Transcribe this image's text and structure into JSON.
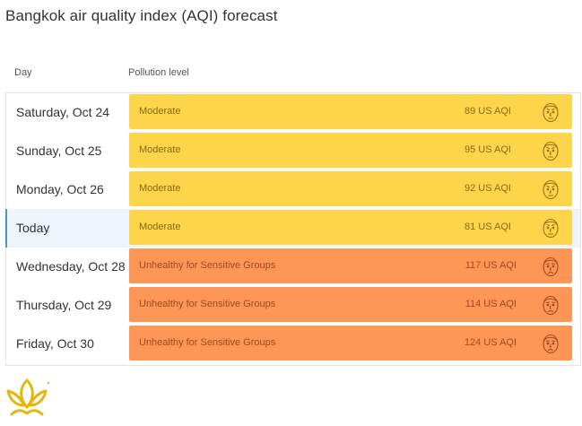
{
  "title": "Bangkok air quality index (AQI) forecast",
  "columns": {
    "day": "Day",
    "level": "Pollution level"
  },
  "colors": {
    "moderate": "#fcd54b",
    "unhealthy_sensitive": "#fe9656",
    "today_accent": "#4a97c9"
  },
  "rows": [
    {
      "day": "Saturday, Oct 24",
      "level": "Moderate",
      "aqi": "89 US AQI",
      "icon": "moderate-face-icon"
    },
    {
      "day": "Sunday, Oct 25",
      "level": "Moderate",
      "aqi": "95 US AQI",
      "icon": "moderate-face-icon"
    },
    {
      "day": "Monday, Oct 26",
      "level": "Moderate",
      "aqi": "92 US AQI",
      "icon": "moderate-face-icon"
    },
    {
      "day": "Today",
      "level": "Moderate",
      "aqi": "81 US AQI",
      "icon": "moderate-face-icon"
    },
    {
      "day": "Wednesday, Oct 28",
      "level": "Unhealthy for Sensitive Groups",
      "aqi": "117 US AQI",
      "icon": "unhealthy-face-icon"
    },
    {
      "day": "Thursday, Oct 29",
      "level": "Unhealthy for Sensitive Groups",
      "aqi": "114 US AQI",
      "icon": "unhealthy-face-icon"
    },
    {
      "day": "Friday, Oct 30",
      "level": "Unhealthy for Sensitive Groups",
      "aqi": "124 US AQI",
      "icon": "unhealthy-face-icon"
    }
  ],
  "logo": {
    "icon": "lotus-logo-icon"
  }
}
